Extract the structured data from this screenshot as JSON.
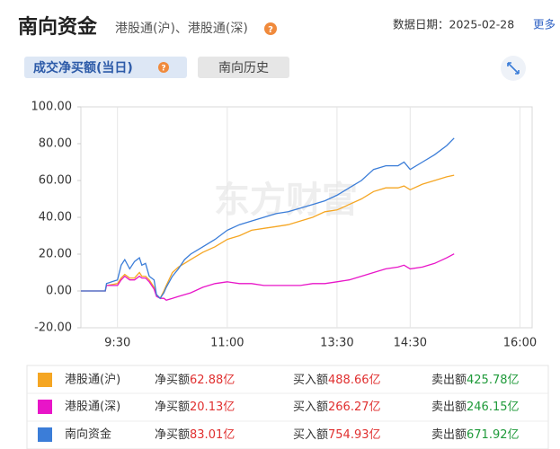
{
  "header": {
    "title": "南向资金",
    "subtitle": "港股通(沪)、港股通(深)",
    "help": "?",
    "date": "数据日期：2025-02-28",
    "more": "更多"
  },
  "tabs": [
    {
      "label": "成交净买额(当日)",
      "help": "?"
    },
    {
      "label": "南向历史"
    }
  ],
  "watermark": "东方财富",
  "chart_data": {
    "type": "line",
    "x": [
      0,
      20,
      21,
      30,
      33,
      36,
      40,
      44,
      48,
      50,
      53,
      56,
      60,
      62,
      65,
      68,
      70,
      75,
      80,
      85,
      90,
      100,
      110,
      120,
      130,
      140,
      150,
      160,
      170,
      180,
      190,
      200,
      210,
      220,
      230,
      240,
      250,
      260,
      265,
      270,
      280,
      290,
      300,
      306
    ],
    "series": [
      {
        "name": "港股通(沪)",
        "color": "#f5a623",
        "values": [
          0,
          0,
          3,
          4,
          7,
          9,
          7,
          7,
          10,
          8,
          8,
          6,
          2,
          -2,
          -4,
          0,
          3,
          10,
          13,
          15,
          17,
          21,
          24,
          28,
          30,
          33,
          34,
          35,
          36,
          38,
          40,
          43,
          44,
          47,
          50,
          54,
          56,
          56,
          57,
          55,
          58,
          60,
          62,
          62.88
        ]
      },
      {
        "name": "港股通(深)",
        "color": "#e815c8",
        "values": [
          0,
          0,
          3,
          3,
          6,
          8,
          6,
          6,
          8,
          7,
          7,
          5,
          1,
          -3,
          -4,
          -4,
          -5,
          -4,
          -3,
          -2,
          -1,
          2,
          4,
          5,
          4,
          4,
          3,
          3,
          3,
          3,
          4,
          4,
          5,
          6,
          8,
          10,
          12,
          13,
          14,
          12,
          13,
          15,
          18,
          20.13
        ]
      },
      {
        "name": "南向资金",
        "color": "#3b7dd8",
        "values": [
          0,
          0,
          4,
          6,
          14,
          17,
          12,
          16,
          18,
          14,
          15,
          8,
          6,
          -2,
          -4,
          -1,
          2,
          8,
          12,
          17,
          20,
          24,
          28,
          33,
          36,
          38,
          40,
          42,
          43,
          45,
          47,
          49,
          52,
          56,
          60,
          66,
          68,
          68,
          70,
          66,
          70,
          74,
          79,
          83.01
        ]
      }
    ],
    "xlim": [
      0,
      370
    ],
    "xticks": [
      {
        "value": 30,
        "label": "9:30"
      },
      {
        "value": 120,
        "label": "11:00"
      },
      {
        "value": 210,
        "label": "13:30"
      },
      {
        "value": 270,
        "label": "14:30"
      },
      {
        "value": 360,
        "label": "16:00"
      }
    ],
    "ylim": [
      -20,
      100
    ],
    "yticks": [
      {
        "value": -20,
        "label": "-20.00"
      },
      {
        "value": 0,
        "label": "0.00"
      },
      {
        "value": 20,
        "label": "20.00"
      },
      {
        "value": 40,
        "label": "40.00"
      },
      {
        "value": 60,
        "label": "60.00"
      },
      {
        "value": 80,
        "label": "80.00"
      },
      {
        "value": 100,
        "label": "100.00"
      }
    ],
    "grid": "x"
  },
  "summary": [
    {
      "net_label": "净买额",
      "net": "62.88亿",
      "buy_label": "买入额",
      "buy": "488.66亿",
      "sell_label": "卖出额",
      "sell": "425.78亿"
    },
    {
      "net_label": "净买额",
      "net": "20.13亿",
      "buy_label": "买入额",
      "buy": "266.27亿",
      "sell_label": "卖出额",
      "sell": "246.15亿"
    },
    {
      "net_label": "净买额",
      "net": "83.01亿",
      "buy_label": "买入额",
      "buy": "754.93亿",
      "sell_label": "卖出额",
      "sell": "671.92亿"
    }
  ]
}
